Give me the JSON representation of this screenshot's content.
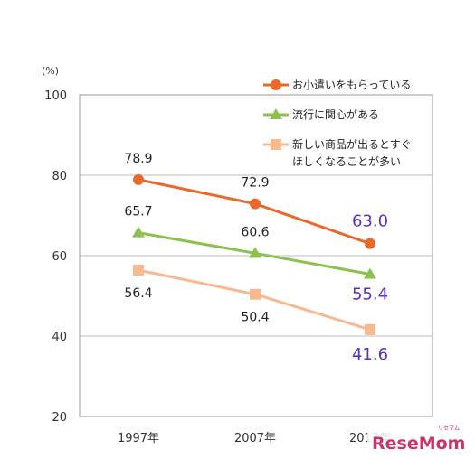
{
  "chart_data": {
    "type": "line",
    "unit_label": "(%)",
    "categories": [
      "1997年",
      "2007年",
      "2017年"
    ],
    "ylim": [
      20,
      100
    ],
    "yticks": [
      20,
      40,
      60,
      80,
      100
    ],
    "grid": true,
    "legend_position": "top-right",
    "series": [
      {
        "name": "お小遣いをもらっている",
        "values": [
          78.9,
          72.9,
          63.0
        ],
        "labels": [
          "78.9",
          "72.9",
          "63.0"
        ],
        "color": "#e8692a",
        "marker": "circle"
      },
      {
        "name": "流行に関心がある",
        "values": [
          65.7,
          60.6,
          55.4
        ],
        "labels": [
          "65.7",
          "60.6",
          "55.4"
        ],
        "color": "#8cc152",
        "marker": "triangle"
      },
      {
        "name": [
          "新しい商品が出るとすぐ",
          "ほしくなることが多い"
        ],
        "values": [
          56.4,
          50.4,
          41.6
        ],
        "labels": [
          "56.4",
          "50.4",
          "41.6"
        ],
        "color": "#f8b98e",
        "marker": "square"
      }
    ],
    "highlight_color": "#5b2fc0"
  },
  "watermark": {
    "text": "ReseMom",
    "small": "リセマム",
    "color": "#cc3366"
  }
}
